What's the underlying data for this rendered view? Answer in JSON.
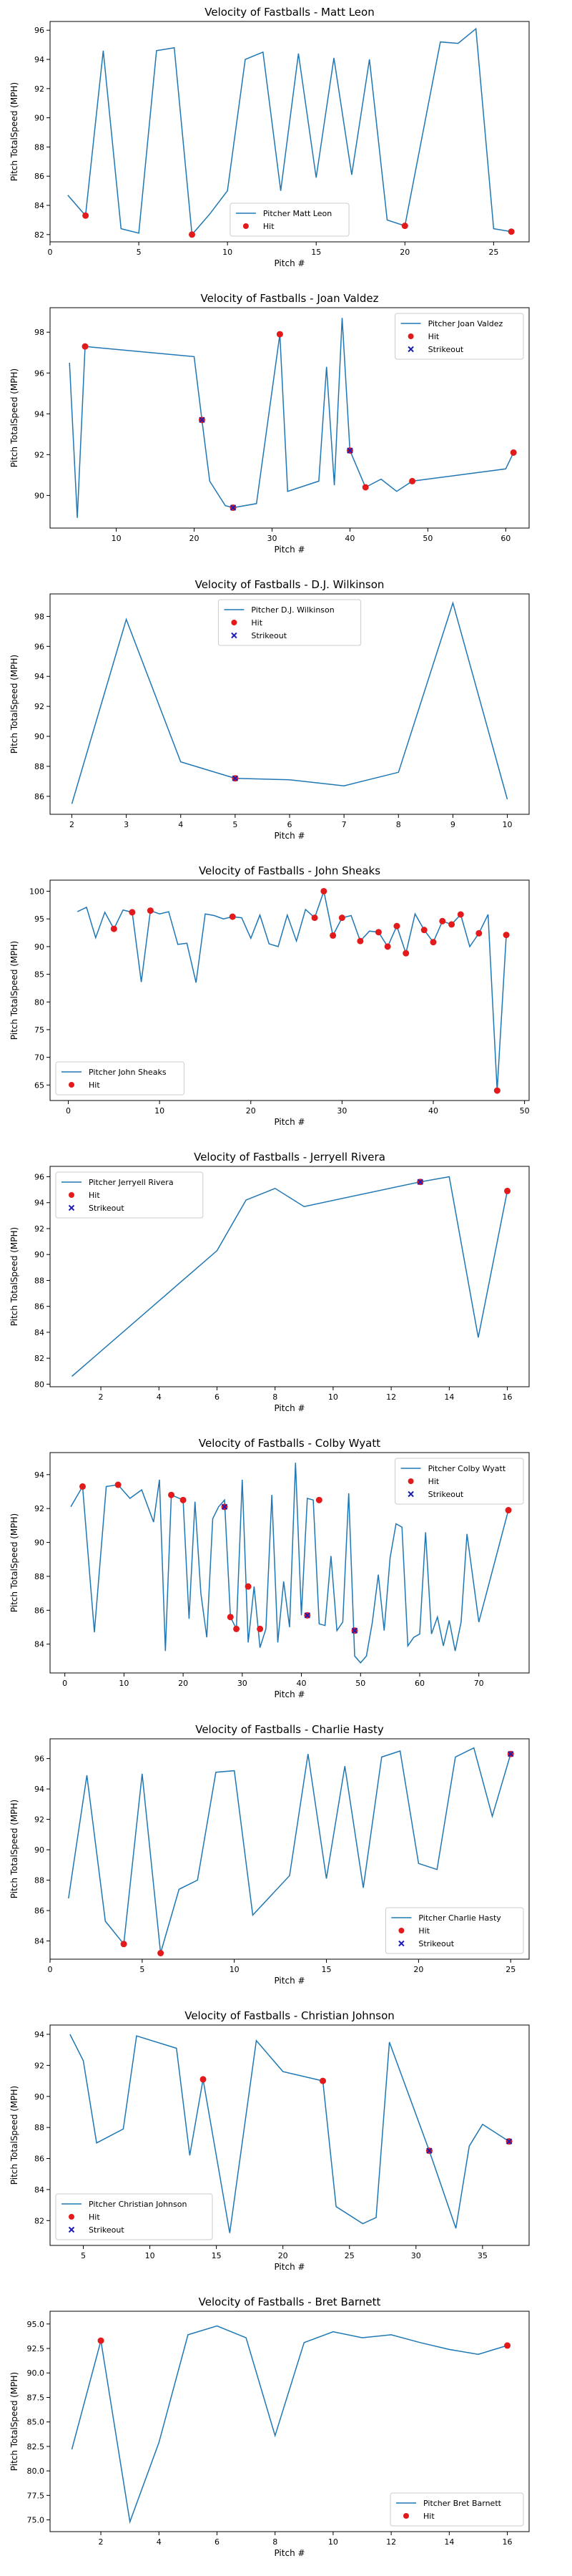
{
  "figure": {
    "x_axis_label": "Pitch #",
    "y_axis_label": "Pitch TotalSpeed (MPH)"
  },
  "colors": {
    "line": "#1f77b4",
    "hit": "#e31a1c",
    "strikeout": "#1f1fb4",
    "axis": "#000000"
  },
  "chart_data": [
    {
      "type": "line",
      "title": "Velocity of Fastballs - Matt Leon",
      "legend": {
        "placement": "lower-center",
        "entries": [
          "Pitcher Matt Leon",
          "Hit"
        ]
      },
      "xlim": [
        0,
        27
      ],
      "ylim": [
        81.5,
        96.6
      ],
      "xticks": [
        0,
        5,
        10,
        15,
        20,
        25
      ],
      "yticks": [
        82,
        84,
        86,
        88,
        90,
        92,
        94,
        96
      ],
      "series": [
        {
          "name": "Pitcher Matt Leon",
          "x": [
            1,
            2,
            3,
            4,
            5,
            6,
            7,
            8,
            9,
            10,
            11,
            12,
            13,
            14,
            15,
            16,
            17,
            18,
            19,
            20,
            21,
            22,
            23,
            24,
            25,
            26
          ],
          "y": [
            84.7,
            83.3,
            94.6,
            82.4,
            82.1,
            94.6,
            94.8,
            82.0,
            83.4,
            85.0,
            94.0,
            94.5,
            85.0,
            94.4,
            85.9,
            94.1,
            86.1,
            94.0,
            83.0,
            82.6,
            88.9,
            95.2,
            95.1,
            96.1,
            82.4,
            82.2
          ]
        }
      ],
      "hits": {
        "x": [
          2,
          8,
          20,
          26
        ],
        "y": [
          83.3,
          82.0,
          82.6,
          82.2
        ]
      },
      "strikeouts": {
        "x": [],
        "y": []
      }
    },
    {
      "type": "line",
      "title": "Velocity of Fastballs - Joan Valdez",
      "legend": {
        "placement": "upper-right",
        "entries": [
          "Pitcher Joan Valdez",
          "Hit",
          "Strikeout"
        ]
      },
      "xlim": [
        1.5,
        63
      ],
      "ylim": [
        88.4,
        99.2
      ],
      "xticks": [
        10,
        20,
        30,
        40,
        50,
        60
      ],
      "yticks": [
        90,
        92,
        94,
        96,
        98
      ],
      "series": [
        {
          "name": "Pitcher Joan Valdez",
          "x": [
            4,
            5,
            6,
            20,
            21,
            22,
            24,
            25,
            28,
            31,
            32,
            36,
            37,
            38,
            39,
            40,
            42,
            44,
            46,
            48,
            60,
            61
          ],
          "y": [
            96.5,
            88.9,
            97.3,
            96.8,
            93.7,
            90.7,
            89.5,
            89.4,
            89.6,
            97.9,
            90.2,
            90.7,
            96.3,
            90.5,
            98.7,
            92.2,
            90.4,
            90.8,
            90.2,
            90.7,
            91.3,
            92.1
          ]
        }
      ],
      "hits": {
        "x": [
          6,
          21,
          25,
          31,
          40,
          42,
          48,
          61
        ],
        "y": [
          97.3,
          93.7,
          89.4,
          97.9,
          92.2,
          90.4,
          90.7,
          92.1
        ]
      },
      "strikeouts": {
        "x": [
          21,
          25,
          40
        ],
        "y": [
          93.7,
          89.4,
          92.2
        ]
      }
    },
    {
      "type": "line",
      "title": "Velocity of Fastballs - D.J. Wilkinson",
      "legend": {
        "placement": "upper-center",
        "entries": [
          "Pitcher D.J. Wilkinson",
          "Hit",
          "Strikeout"
        ]
      },
      "xlim": [
        1.6,
        10.4
      ],
      "ylim": [
        84.8,
        99.5
      ],
      "xticks": [
        2,
        3,
        4,
        5,
        6,
        7,
        8,
        9,
        10
      ],
      "yticks": [
        86,
        88,
        90,
        92,
        94,
        96,
        98
      ],
      "series": [
        {
          "name": "Pitcher D.J. Wilkinson",
          "x": [
            2,
            3,
            4,
            5,
            6,
            7,
            8,
            9,
            10
          ],
          "y": [
            85.5,
            97.8,
            88.3,
            87.2,
            87.1,
            86.7,
            87.6,
            98.9,
            85.8
          ]
        }
      ],
      "hits": {
        "x": [
          5
        ],
        "y": [
          87.2
        ]
      },
      "strikeouts": {
        "x": [
          5
        ],
        "y": [
          87.2
        ]
      }
    },
    {
      "type": "line",
      "title": "Velocity of Fastballs - John Sheaks",
      "legend": {
        "placement": "lower-left",
        "entries": [
          "Pitcher John Sheaks",
          "Hit"
        ]
      },
      "xlim": [
        -2,
        50.5
      ],
      "ylim": [
        62.2,
        102.0
      ],
      "xticks": [
        0,
        10,
        20,
        30,
        40,
        50
      ],
      "yticks": [
        65,
        70,
        75,
        80,
        85,
        90,
        95,
        100
      ],
      "series": [
        {
          "name": "Pitcher John Sheaks",
          "x": [
            1,
            2,
            3,
            4,
            5,
            6,
            7,
            8,
            9,
            10,
            11,
            12,
            13,
            14,
            15,
            16,
            17,
            18,
            19,
            20,
            21,
            22,
            23,
            24,
            25,
            26,
            27,
            28,
            29,
            30,
            31,
            32,
            33,
            34,
            35,
            36,
            37,
            38,
            39,
            40,
            41,
            42,
            43,
            44,
            45,
            46,
            47,
            48
          ],
          "y": [
            96.3,
            97.1,
            91.6,
            96.2,
            93.2,
            96.6,
            96.2,
            83.6,
            96.5,
            95.9,
            96.3,
            90.4,
            90.6,
            83.5,
            95.9,
            95.6,
            95.0,
            95.4,
            95.2,
            91.5,
            95.7,
            90.5,
            90.0,
            95.7,
            91.0,
            96.7,
            95.2,
            100.0,
            92.0,
            95.2,
            95.6,
            91.0,
            92.8,
            92.6,
            90.0,
            93.7,
            88.8,
            95.9,
            93.0,
            90.8,
            94.6,
            94.0,
            95.8,
            90.0,
            92.4,
            95.8,
            64.0,
            92.1
          ]
        }
      ],
      "hits": {
        "x": [
          5,
          7,
          9,
          18,
          27,
          28,
          29,
          30,
          32,
          34,
          35,
          36,
          37,
          39,
          40,
          41,
          42,
          43,
          45,
          47,
          48
        ],
        "y": [
          93.2,
          96.2,
          96.5,
          95.4,
          95.2,
          100.0,
          92.0,
          95.2,
          91.0,
          92.6,
          90.0,
          93.7,
          88.8,
          93.0,
          90.8,
          94.6,
          94.0,
          95.8,
          92.4,
          64.0,
          92.1
        ]
      },
      "strikeouts": {
        "x": [],
        "y": []
      }
    },
    {
      "type": "line",
      "title": "Velocity of Fastballs - Jerryell Rivera",
      "legend": {
        "placement": "upper-left",
        "entries": [
          "Pitcher Jerryell Rivera",
          "Hit",
          "Strikeout"
        ]
      },
      "xlim": [
        0.25,
        16.75
      ],
      "ylim": [
        79.8,
        96.8
      ],
      "xticks": [
        2,
        4,
        6,
        8,
        10,
        12,
        14,
        16
      ],
      "yticks": [
        80,
        82,
        84,
        86,
        88,
        90,
        92,
        94,
        96
      ],
      "series": [
        {
          "name": "Pitcher Jerryell Rivera",
          "x": [
            1,
            6,
            7,
            8,
            9,
            13,
            14,
            15,
            16
          ],
          "y": [
            80.6,
            90.3,
            94.2,
            95.1,
            93.7,
            95.6,
            96.0,
            83.6,
            94.9
          ]
        }
      ],
      "hits": {
        "x": [
          13,
          16
        ],
        "y": [
          95.6,
          94.9
        ]
      },
      "strikeouts": {
        "x": [
          13
        ],
        "y": [
          95.6
        ]
      }
    },
    {
      "type": "line",
      "title": "Velocity of Fastballs - Colby Wyatt",
      "legend": {
        "placement": "upper-right",
        "entries": [
          "Pitcher Colby Wyatt",
          "Hit",
          "Strikeout"
        ]
      },
      "xlim": [
        -2.5,
        78.5
      ],
      "ylim": [
        82.3,
        95.3
      ],
      "xticks": [
        0,
        10,
        20,
        30,
        40,
        50,
        60,
        70
      ],
      "yticks": [
        84,
        86,
        88,
        90,
        92,
        94
      ],
      "series": [
        {
          "name": "Pitcher Colby Wyatt",
          "x": [
            1,
            3,
            5,
            7,
            9,
            11,
            13,
            15,
            16,
            17,
            18,
            20,
            21,
            22,
            23,
            24,
            25,
            26,
            27,
            28,
            29,
            30,
            31,
            32,
            33,
            34,
            35,
            36,
            37,
            38,
            39,
            40,
            41,
            42,
            43,
            44,
            45,
            46,
            47,
            48,
            49,
            50,
            51,
            52,
            53,
            54,
            55,
            56,
            57,
            58,
            59,
            60,
            61,
            62,
            63,
            64,
            65,
            66,
            67,
            68,
            70,
            75
          ],
          "y": [
            92.1,
            93.3,
            84.7,
            93.3,
            93.4,
            92.6,
            93.1,
            91.2,
            93.7,
            83.6,
            92.8,
            92.5,
            85.5,
            92.4,
            87.0,
            84.4,
            91.4,
            92.1,
            92.5,
            85.6,
            84.9,
            93.7,
            84.1,
            87.4,
            83.8,
            84.9,
            92.8,
            84.1,
            87.7,
            85.0,
            94.7,
            85.7,
            92.6,
            92.5,
            85.2,
            85.1,
            89.2,
            84.8,
            85.3,
            92.9,
            83.3,
            82.9,
            83.3,
            85.3,
            88.1,
            84.8,
            89.1,
            91.1,
            90.9,
            83.9,
            84.4,
            84.6,
            90.6,
            84.6,
            85.6,
            83.9,
            85.4,
            83.6,
            85.3,
            90.5,
            85.3,
            91.9
          ]
        }
      ],
      "hits": {
        "x": [
          3,
          9,
          18,
          20,
          27,
          28,
          29,
          31,
          33,
          41,
          43,
          49,
          75
        ],
        "y": [
          93.3,
          93.4,
          92.8,
          92.5,
          92.1,
          85.6,
          84.9,
          87.4,
          84.9,
          85.7,
          92.5,
          84.8,
          91.9
        ]
      },
      "strikeouts": {
        "x": [
          27,
          41,
          49
        ],
        "y": [
          92.1,
          85.7,
          84.8
        ]
      }
    },
    {
      "type": "line",
      "title": "Velocity of Fastballs - Charlie Hasty",
      "legend": {
        "placement": "lower-right",
        "entries": [
          "Pitcher Charlie Hasty",
          "Hit",
          "Strikeout"
        ]
      },
      "xlim": [
        0,
        26
      ],
      "ylim": [
        82.8,
        97.3
      ],
      "xticks": [
        0,
        5,
        10,
        15,
        20,
        25
      ],
      "yticks": [
        84,
        86,
        88,
        90,
        92,
        94,
        96
      ],
      "series": [
        {
          "name": "Pitcher Charlie Hasty",
          "x": [
            1,
            2,
            3,
            4,
            5,
            6,
            7,
            8,
            9,
            10,
            11,
            13,
            14,
            15,
            16,
            17,
            18,
            19,
            20,
            21,
            22,
            23,
            24,
            25
          ],
          "y": [
            86.8,
            94.9,
            85.3,
            83.8,
            95.0,
            83.2,
            87.4,
            88.0,
            95.1,
            95.2,
            85.7,
            88.3,
            96.3,
            88.1,
            95.5,
            87.5,
            96.1,
            96.5,
            89.1,
            88.7,
            96.1,
            96.7,
            92.2,
            96.3
          ]
        }
      ],
      "hits": {
        "x": [
          4,
          6,
          25
        ],
        "y": [
          83.8,
          83.2,
          96.3
        ]
      },
      "strikeouts": {
        "x": [
          25
        ],
        "y": [
          96.3
        ]
      }
    },
    {
      "type": "line",
      "title": "Velocity of Fastballs - Christian Johnson",
      "legend": {
        "placement": "lower-left",
        "entries": [
          "Pitcher Christian Johnson",
          "Hit",
          "Strikeout"
        ]
      },
      "xlim": [
        2.5,
        38.5
      ],
      "ylim": [
        80.4,
        94.6
      ],
      "xticks": [
        5,
        10,
        15,
        20,
        25,
        30,
        35
      ],
      "yticks": [
        82,
        84,
        86,
        88,
        90,
        92,
        94
      ],
      "series": [
        {
          "name": "Pitcher Christian Johnson",
          "x": [
            4,
            5,
            6,
            8,
            9,
            12,
            13,
            14,
            16,
            18,
            20,
            23,
            24,
            26,
            27,
            28,
            31,
            33,
            34,
            35,
            37
          ],
          "y": [
            94.0,
            92.3,
            87.0,
            87.9,
            93.9,
            93.1,
            86.2,
            91.1,
            81.2,
            93.6,
            91.6,
            91.0,
            82.9,
            81.8,
            82.2,
            93.5,
            86.5,
            81.5,
            86.8,
            88.2,
            87.1
          ]
        }
      ],
      "hits": {
        "x": [
          14,
          23,
          31,
          37
        ],
        "y": [
          91.1,
          91.0,
          86.5,
          87.1
        ]
      },
      "strikeouts": {
        "x": [
          31,
          37
        ],
        "y": [
          86.5,
          87.1
        ]
      }
    },
    {
      "type": "line",
      "title": "Velocity of Fastballs - Bret Barnett",
      "legend": {
        "placement": "lower-right",
        "entries": [
          "Pitcher Bret Barnett",
          "Hit"
        ]
      },
      "xlim": [
        0.25,
        16.75
      ],
      "ylim": [
        73.8,
        96.3
      ],
      "xticks": [
        2,
        4,
        6,
        8,
        10,
        12,
        14,
        16
      ],
      "yticks": [
        75.0,
        77.5,
        80.0,
        82.5,
        85.0,
        87.5,
        90.0,
        92.5,
        95.0
      ],
      "series": [
        {
          "name": "Pitcher Bret Barnett",
          "x": [
            1,
            2,
            3,
            4,
            5,
            6,
            7,
            8,
            9,
            10,
            11,
            12,
            13,
            14,
            15,
            16
          ],
          "y": [
            82.2,
            93.3,
            74.8,
            82.9,
            93.9,
            94.8,
            93.6,
            83.6,
            93.1,
            94.2,
            93.6,
            93.9,
            93.1,
            92.4,
            91.9,
            92.8
          ]
        }
      ],
      "hits": {
        "x": [
          2,
          16
        ],
        "y": [
          93.3,
          92.8
        ]
      },
      "strikeouts": {
        "x": [],
        "y": []
      }
    }
  ]
}
